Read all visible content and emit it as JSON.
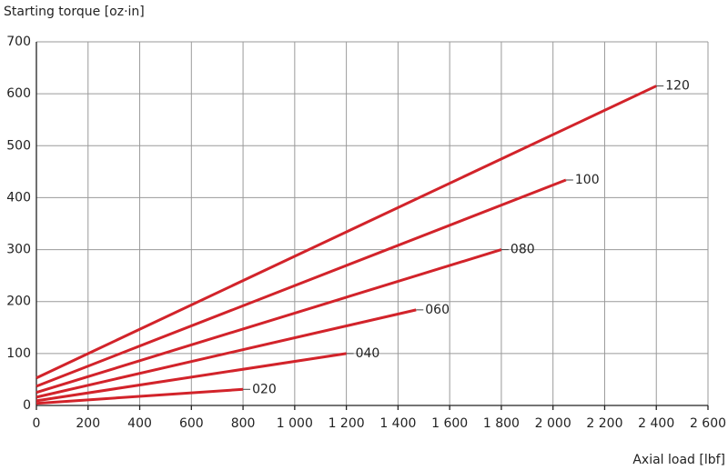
{
  "chart_data": {
    "type": "line",
    "ylabel": "Starting torque [oz·in]",
    "xlabel": "Axial load [lbf]",
    "xlim": [
      0,
      2600
    ],
    "ylim": [
      0,
      700
    ],
    "xticks": [
      0,
      200,
      400,
      600,
      800,
      {
        "value": 1000,
        "label": "1 000"
      },
      {
        "value": 1200,
        "label": "1 200"
      },
      {
        "value": 1400,
        "label": "1 400"
      },
      {
        "value": 1600,
        "label": "1 600"
      },
      {
        "value": 1800,
        "label": "1 800"
      },
      {
        "value": 2000,
        "label": "2 000"
      },
      {
        "value": 2200,
        "label": "2 200"
      },
      {
        "value": 2400,
        "label": "2 400"
      },
      {
        "value": 2600,
        "label": "2 600"
      }
    ],
    "yticks": [
      0,
      100,
      200,
      300,
      400,
      500,
      600,
      700
    ],
    "grid": true,
    "series": [
      {
        "name": "020",
        "color": "#d2232a",
        "x": [
          0,
          800
        ],
        "values": [
          4,
          31
        ]
      },
      {
        "name": "040",
        "color": "#d2232a",
        "x": [
          0,
          1200
        ],
        "values": [
          9,
          100
        ]
      },
      {
        "name": "060",
        "color": "#d2232a",
        "x": [
          0,
          1470
        ],
        "values": [
          16,
          184
        ]
      },
      {
        "name": "080",
        "color": "#d2232a",
        "x": [
          0,
          1800
        ],
        "values": [
          25,
          300
        ]
      },
      {
        "name": "100",
        "color": "#d2232a",
        "x": [
          0,
          2050
        ],
        "values": [
          37,
          434
        ]
      },
      {
        "name": "120",
        "color": "#d2232a",
        "x": [
          0,
          2400
        ],
        "values": [
          53,
          615
        ]
      }
    ]
  }
}
